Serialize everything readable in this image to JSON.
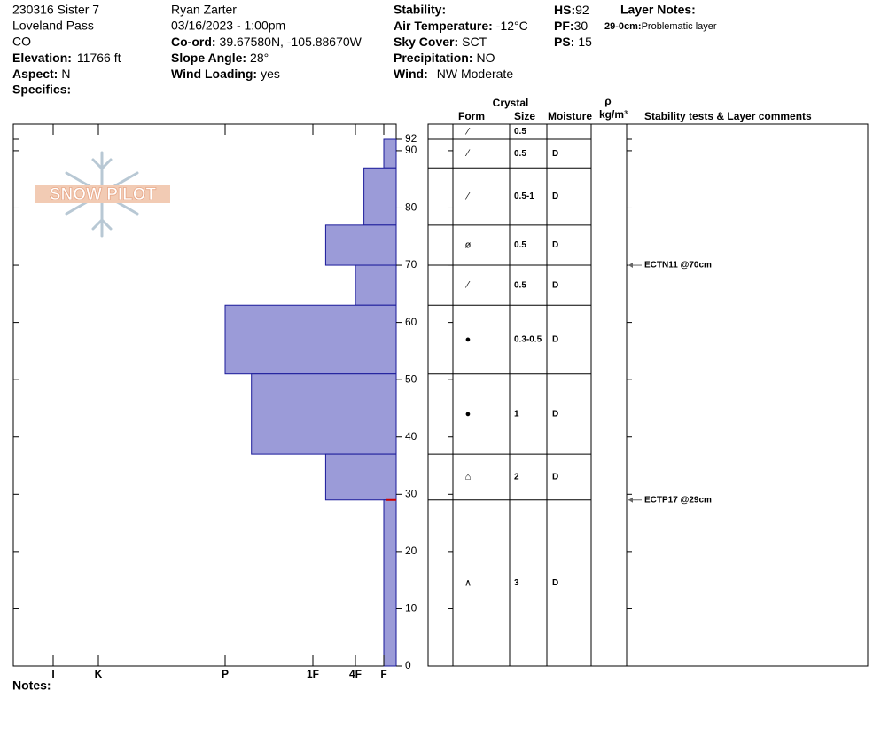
{
  "header": {
    "site": "230316 Sister 7",
    "location": "Loveland Pass",
    "state": "CO",
    "elevation": {
      "label": "Elevation:",
      "value": "11766 ft"
    },
    "aspect": {
      "label": "Aspect:",
      "value": "N"
    },
    "specifics": {
      "label": "Specifics:"
    },
    "observer": "Ryan Zarter",
    "datetime": "03/16/2023 - 1:00pm",
    "coord": {
      "label": "Co-ord:",
      "value": "39.67580N, -105.88670W"
    },
    "slope_angle": {
      "label": "Slope Angle:",
      "value": "28°"
    },
    "wind_loading": {
      "label": "Wind Loading:",
      "value": "yes"
    },
    "stability": {
      "label": "Stability:"
    },
    "air_temperature": {
      "label": "Air Temperature:",
      "value": "-12°C"
    },
    "sky_cover": {
      "label": "Sky Cover:",
      "value": "SCT"
    },
    "precipitation": {
      "label": "Precipitation:",
      "value": "NO"
    },
    "wind": {
      "label": "Wind:",
      "value": "NW Moderate"
    },
    "hs": {
      "label": "HS:",
      "value": "92"
    },
    "pf": {
      "label": "PF:",
      "value": "30"
    },
    "ps": {
      "label": "PS:",
      "value": "15"
    },
    "layer_notes_title": "Layer Notes:",
    "logo": "SNOW PILOT",
    "notes": "Notes:"
  },
  "chart_data": {
    "type": "snow-profile",
    "xlim": [
      0,
      6.9
    ],
    "xticks": [
      {
        "value": 6,
        "label": "I"
      },
      {
        "value": 5,
        "label": "K"
      },
      {
        "value": 4,
        "label": "P"
      },
      {
        "value": 3,
        "label": "1F"
      },
      {
        "value": 2,
        "label": "4F"
      },
      {
        "value": 1,
        "label": "F"
      }
    ],
    "ylim": [
      0,
      92
    ],
    "yticks": [
      0,
      10,
      20,
      30,
      40,
      50,
      60,
      70,
      80,
      90,
      92
    ],
    "color": "#9b9bd8",
    "edge_color": "#1a1a9a",
    "table_headers": {
      "crystal": "Crystal",
      "form": "Form",
      "size": "Size",
      "moisture": "Moisture",
      "density": "ρ",
      "density_unit": "kg/m³",
      "comments": "Stability tests & Layer comments"
    },
    "surface_row": {
      "form": "⁄",
      "size": "0.5"
    },
    "layers": [
      {
        "top": 92,
        "bottom": 87,
        "hardness": 1,
        "form": "⁄",
        "size": "0.5",
        "moisture": "D"
      },
      {
        "top": 87,
        "bottom": 77,
        "hardness": 1.7,
        "form": "⁄",
        "size": "0.5-1",
        "moisture": "D"
      },
      {
        "top": 77,
        "bottom": 70,
        "hardness": 2.7,
        "form": "ø",
        "size": "0.5",
        "moisture": "D"
      },
      {
        "top": 70,
        "bottom": 63,
        "hardness": 2,
        "form": "⁄",
        "size": "0.5",
        "moisture": "D"
      },
      {
        "top": 63,
        "bottom": 51,
        "hardness": 4,
        "form": "●",
        "size": "0.3-0.5",
        "moisture": "D"
      },
      {
        "top": 51,
        "bottom": 37,
        "hardness": 3.7,
        "form": "●",
        "size": "1",
        "moisture": "D"
      },
      {
        "top": 37,
        "bottom": 29,
        "hardness": 2.7,
        "form": "⌂",
        "size": "2",
        "moisture": "D"
      },
      {
        "top": 29,
        "bottom": 0,
        "hardness": 1,
        "form": "∧",
        "size": "3",
        "moisture": "D"
      }
    ],
    "stability_tests": [
      {
        "depth": 70,
        "label": "ECTN11 @70cm"
      },
      {
        "depth": 29,
        "label": "ECTP17 @29cm"
      }
    ],
    "layer_notes": [
      {
        "top": 29,
        "range": "29-0cm:",
        "note": "Problematic layer",
        "color": "#cc0000"
      }
    ]
  }
}
